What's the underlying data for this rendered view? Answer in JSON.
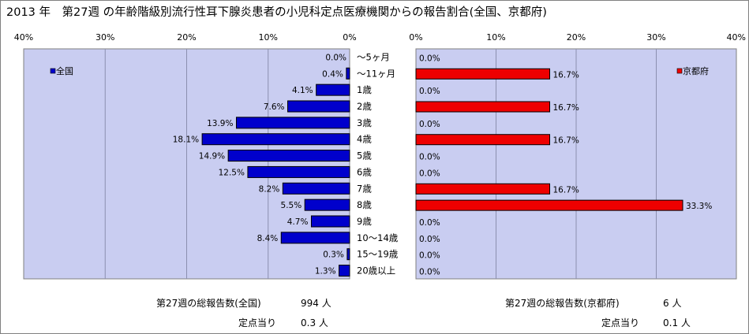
{
  "title": "2013 年　第27週 の年齢階級別流行性耳下腺炎患者の小児科定点医療機関からの報告割合(全国、京都府)",
  "colors": {
    "national_bar": "#0000cc",
    "kyoto_bar": "#ee0000",
    "plot_bg": "#c9cdf1",
    "grid": "#8b8fb0"
  },
  "chart_data": [
    {
      "type": "bar",
      "orientation": "horizontal",
      "direction": "right-to-left",
      "series_name": "全国",
      "legend_position": "top-left",
      "xlim": [
        0,
        40
      ],
      "ticks": [
        "0%",
        "10%",
        "20%",
        "30%",
        "40%"
      ],
      "tick_values": [
        0,
        10,
        20,
        30,
        40
      ],
      "grid": true,
      "categories": [
        "～5ヶ月",
        "～11ヶ月",
        "1歳",
        "2歳",
        "3歳",
        "4歳",
        "5歳",
        "6歳",
        "7歳",
        "8歳",
        "9歳",
        "10～14歳",
        "15～19歳",
        "20歳以上"
      ],
      "values": [
        0.0,
        0.4,
        4.1,
        7.6,
        13.9,
        18.1,
        14.9,
        12.5,
        8.2,
        5.5,
        4.7,
        8.4,
        0.3,
        1.3
      ],
      "labels": [
        "0.0%",
        "0.4%",
        "4.1%",
        "7.6%",
        "13.9%",
        "18.1%",
        "14.9%",
        "12.5%",
        "8.2%",
        "5.5%",
        "4.7%",
        "8.4%",
        "0.3%",
        "1.3%"
      ]
    },
    {
      "type": "bar",
      "orientation": "horizontal",
      "direction": "left-to-right",
      "series_name": "京都府",
      "legend_position": "top-right",
      "xlim": [
        0,
        40
      ],
      "ticks": [
        "0%",
        "10%",
        "20%",
        "30%",
        "40%"
      ],
      "tick_values": [
        0,
        10,
        20,
        30,
        40
      ],
      "grid": true,
      "categories": [
        "～5ヶ月",
        "～11ヶ月",
        "1歳",
        "2歳",
        "3歳",
        "4歳",
        "5歳",
        "6歳",
        "7歳",
        "8歳",
        "9歳",
        "10～14歳",
        "15～19歳",
        "20歳以上"
      ],
      "values": [
        0.0,
        16.7,
        0.0,
        16.7,
        0.0,
        16.7,
        0.0,
        0.0,
        16.7,
        33.3,
        0.0,
        0.0,
        0.0,
        0.0
      ],
      "labels": [
        "0.0%",
        "16.7%",
        "0.0%",
        "16.7%",
        "0.0%",
        "16.7%",
        "0.0%",
        "0.0%",
        "16.7%",
        "33.3%",
        "0.0%",
        "0.0%",
        "0.0%",
        "0.0%"
      ]
    }
  ],
  "footer": {
    "national_total_label": "第27週の総報告数(全国)",
    "national_total_value": "994 人",
    "national_per_label": "定点当り",
    "national_per_value": "0.3 人",
    "kyoto_total_label": "第27週の総報告数(京都府)",
    "kyoto_total_value": "6 人",
    "kyoto_per_label": "定点当り",
    "kyoto_per_value": "0.1 人"
  }
}
